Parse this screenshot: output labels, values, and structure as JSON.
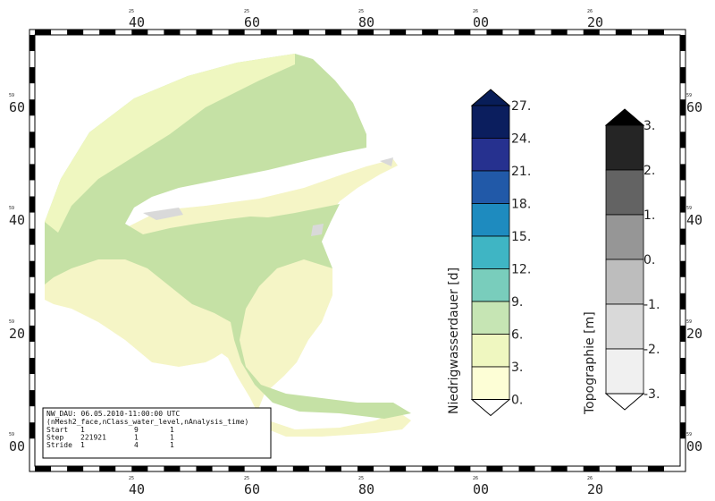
{
  "map": {
    "x_tick_labels_top": [
      {
        "minor": "25",
        "major": "40"
      },
      {
        "minor": "25",
        "major": "60"
      },
      {
        "minor": "25",
        "major": "80"
      },
      {
        "minor": "26",
        "major": "00"
      },
      {
        "minor": "26",
        "major": "20"
      }
    ],
    "y_tick_labels": [
      {
        "minor": "59",
        "major": "60"
      },
      {
        "minor": "59",
        "major": "40"
      },
      {
        "minor": "59",
        "major": "20"
      },
      {
        "minor": "59",
        "major": "00"
      }
    ],
    "colors": {
      "water_green": "#c5e1a5",
      "land_yellow": "#f5f5c6",
      "lightyellow": "#fbfbd8"
    }
  },
  "colorbar_duration": {
    "title": "Niedrigwasserdauer [d]",
    "labels": [
      "27.",
      "24.",
      "21.",
      "18.",
      "15.",
      "12.",
      "9.",
      "6.",
      "3.",
      "0."
    ],
    "colors": [
      "#0b1e5e",
      "#26318f",
      "#2159a8",
      "#1e8bbf",
      "#3fb5c4",
      "#79cdbc",
      "#c6e5b4",
      "#eff7c0",
      "#fdfed6"
    ],
    "top_arrow_color": "#081d58",
    "bottom_arrow_color": "#ffffff"
  },
  "colorbar_topo": {
    "title": "Topographie [m]",
    "labels": [
      "3.",
      "2.",
      "1.",
      "0.",
      "-1.",
      "-2.",
      "-3."
    ],
    "colors": [
      "#252525",
      "#636363",
      "#969696",
      "#bdbdbd",
      "#d9d9d9",
      "#f0f0f0"
    ],
    "top_arrow_color": "#000000",
    "bottom_arrow_color": "#ffffff"
  },
  "info_box": {
    "line1": "NW_DAU: 06.05.2010-11:00:00 UTC",
    "line2": "(nMesh2_face,nClass_water_level,nAnalysis_time)",
    "rows": [
      {
        "name": "Start",
        "a": "1",
        "b": "9",
        "c": "1"
      },
      {
        "name": "Step",
        "a": "221921",
        "b": "1",
        "c": "1"
      },
      {
        "name": "Stride",
        "a": "1",
        "b": "4",
        "c": "1"
      }
    ]
  }
}
